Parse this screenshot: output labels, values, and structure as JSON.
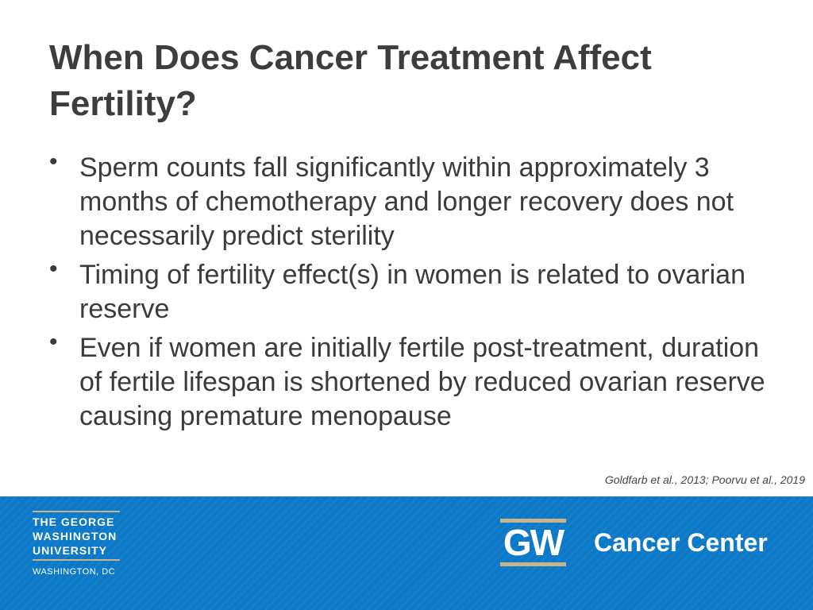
{
  "slide": {
    "title": "When Does Cancer Treatment Affect Fertility?",
    "bullets": [
      "Sperm counts fall significantly within approximately 3 months of chemotherapy and longer recovery does not necessarily predict sterility",
      "Timing of fertility effect(s) in women is related to ovarian reserve",
      "Even if women are initially fertile post-treatment, duration of fertile lifespan is shortened by reduced ovarian reserve causing premature menopause"
    ],
    "citation": "Goldfarb et al., 2013; Poorvu et al., 2019"
  },
  "footer": {
    "university": [
      "THE GEORGE",
      "WASHINGTON",
      "UNIVERSITY"
    ],
    "location": "WASHINGTON, DC",
    "monogram": "GW",
    "center": "Cancer Center"
  }
}
